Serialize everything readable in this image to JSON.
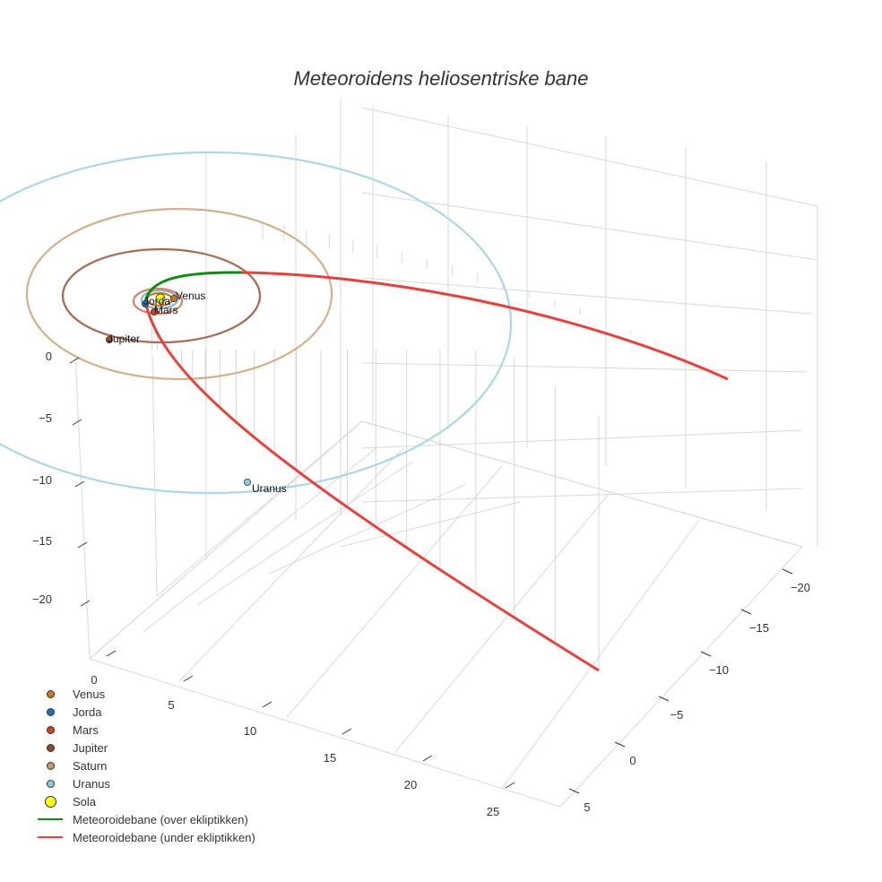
{
  "chart_data": {
    "type": "scatter3d",
    "title": "Meteoroidens heliosentriske bane",
    "axes": {
      "x": {
        "ticks": [
          0,
          5,
          10,
          15,
          20,
          25
        ]
      },
      "y": {
        "ticks": [
          -20,
          -15,
          -10,
          -5,
          0,
          5
        ]
      },
      "z": {
        "ticks": [
          0,
          -5,
          -10,
          -15,
          -20
        ]
      }
    },
    "planets": [
      {
        "name": "Venus",
        "color": "#c8781e",
        "orbit_color": "#c8781e"
      },
      {
        "name": "Jorda",
        "color": "#1f6fb4",
        "orbit_color": "#7fb6de"
      },
      {
        "name": "Mars",
        "color": "#d2421e",
        "orbit_color": "#d8836a"
      },
      {
        "name": "Jupiter",
        "color": "#8b4a2a",
        "orbit_color": "#a86a50"
      },
      {
        "name": "Saturn",
        "color": "#c49a6c",
        "orbit_color": "#d4b08a"
      },
      {
        "name": "Uranus",
        "color": "#8ccbdc",
        "orbit_color": "#aad8e6"
      }
    ],
    "sun": {
      "name": "Sola",
      "color": "#ffff00"
    },
    "trajectory": [
      {
        "name": "Meteoroidebane (over ekliptikken)",
        "color": "#138a13"
      },
      {
        "name": "Meteoroidebane (under ekliptikken)",
        "color": "#e8403a"
      }
    ],
    "grid": true,
    "legend_position": "bottom-left"
  }
}
